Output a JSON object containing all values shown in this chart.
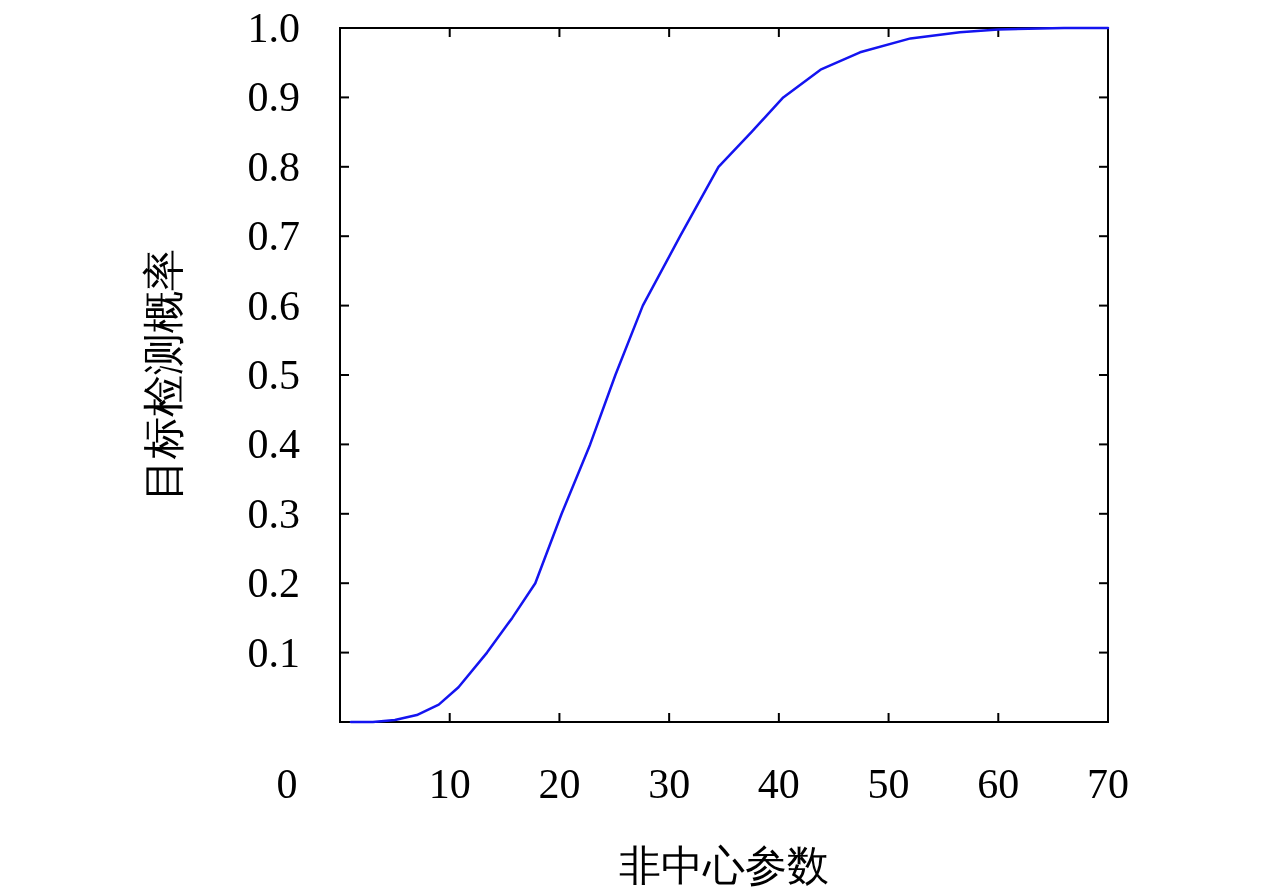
{
  "chart_data": {
    "type": "line",
    "xlabel": "非中心参数",
    "ylabel": "目标检测概率",
    "xlim": [
      0,
      70
    ],
    "ylim": [
      0,
      1
    ],
    "xticks": [
      10,
      20,
      30,
      40,
      50,
      60,
      70
    ],
    "yticks": [
      0.1,
      0.2,
      0.3,
      0.4,
      0.5,
      0.6,
      0.7,
      0.8,
      0.9,
      {
        "value": 1,
        "label": "1.0"
      }
    ],
    "annotations": [
      "0"
    ],
    "grid": false,
    "series": [
      {
        "color": "#1414f0",
        "x": [
          1,
          3,
          5,
          7,
          9,
          10.8,
          13.4,
          15.7,
          17.8,
          20.2,
          22.8,
          25.1,
          27.6,
          31,
          34.5,
          37.5,
          40.4,
          43.8,
          47.4,
          52,
          56.5,
          60,
          66,
          70
        ],
        "values": [
          0,
          0,
          0.003,
          0.01,
          0.025,
          0.05,
          0.1,
          0.15,
          0.2,
          0.3,
          0.4,
          0.5,
          0.6,
          0.7,
          0.8,
          0.85,
          0.9,
          0.94,
          0.965,
          0.985,
          0.994,
          0.998,
          1,
          1
        ]
      }
    ]
  }
}
